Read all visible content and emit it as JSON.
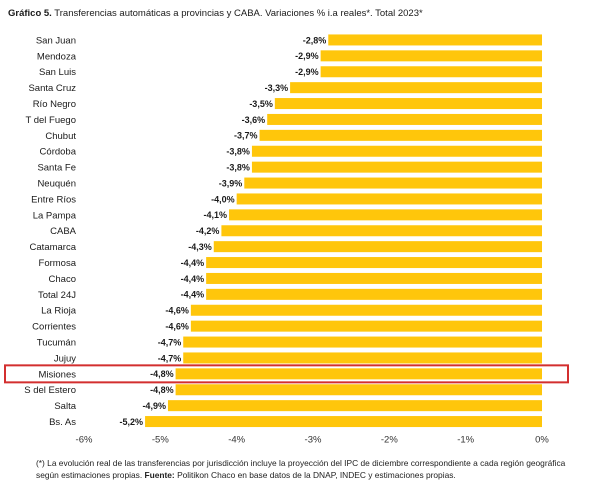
{
  "title": {
    "prefix": "Gráfico 5.",
    "text": "Transferencias automáticas a provincias y CABA. Variaciones % i.a reales*. Total 2023*"
  },
  "colors": {
    "bar": "#FFC60B",
    "highlight_box": "#D32F2F"
  },
  "highlighted_category": "Misiones",
  "footnote": {
    "text_1": "(*) La evolución real de las transferencias por jurisdicción incluye la proyección del IPC de diciembre correspondiente a cada región geográfica según estimaciones propias.",
    "source_label": "Fuente:",
    "text_2": "Politikon Chaco en base datos de la DNAP, INDEC y estimaciones propias."
  },
  "chart_data": {
    "type": "bar",
    "orientation": "horizontal",
    "categories": [
      "San Juan",
      "Mendoza",
      "San Luis",
      "Santa Cruz",
      "Río Negro",
      "T del Fuego",
      "Chubut",
      "Córdoba",
      "Santa Fe",
      "Neuquén",
      "Entre Ríos",
      "La Pampa",
      "CABA",
      "Catamarca",
      "Formosa",
      "Chaco",
      "Total 24J",
      "La Rioja",
      "Corrientes",
      "Tucumán",
      "Jujuy",
      "Misiones",
      "S del Estero",
      "Salta",
      "Bs. As"
    ],
    "values": [
      -2.8,
      -2.9,
      -2.9,
      -3.3,
      -3.5,
      -3.6,
      -3.7,
      -3.8,
      -3.8,
      -3.9,
      -4.0,
      -4.1,
      -4.2,
      -4.3,
      -4.4,
      -4.4,
      -4.4,
      -4.6,
      -4.6,
      -4.7,
      -4.7,
      -4.8,
      -4.8,
      -4.9,
      -5.2
    ],
    "value_labels": [
      "-2,8%",
      "-2,9%",
      "-2,9%",
      "-3,3%",
      "-3,5%",
      "-3,6%",
      "-3,7%",
      "-3,8%",
      "-3,8%",
      "-3,9%",
      "-4,0%",
      "-4,1%",
      "-4,2%",
      "-4,3%",
      "-4,4%",
      "-4,4%",
      "-4,4%",
      "-4,6%",
      "-4,6%",
      "-4,7%",
      "-4,7%",
      "-4,8%",
      "-4,8%",
      "-4,9%",
      "-5,2%"
    ],
    "xlim": [
      -6,
      0
    ],
    "xticks": [
      -6,
      -5,
      -4,
      -3,
      -2,
      -1,
      0
    ],
    "xtick_labels": [
      "-6%",
      "-5%",
      "-4%",
      "-3%",
      "-2%",
      "-1%",
      "0%"
    ],
    "grid": false,
    "legend": "none"
  }
}
